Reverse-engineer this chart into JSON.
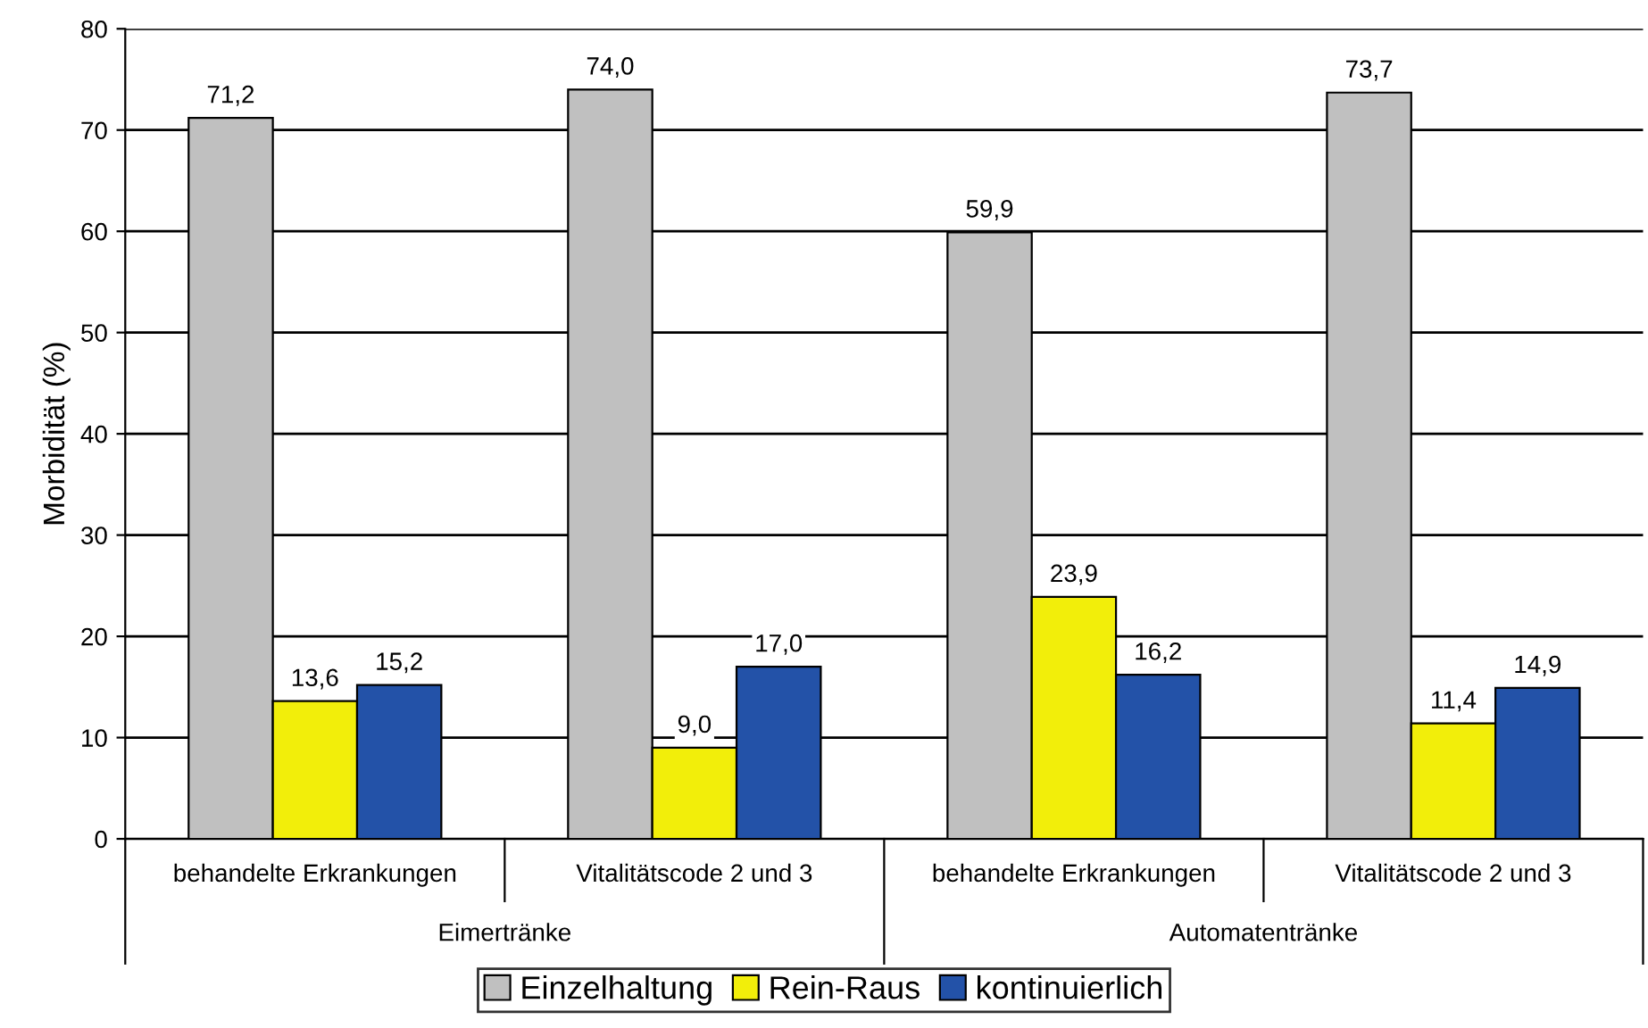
{
  "chart_data": {
    "type": "bar",
    "ylabel": "Morbidität (%)",
    "categories": [
      "behandelte Erkrankungen",
      "Vitalitätscode 2 und 3",
      "behandelte Erkrankungen",
      "Vitalitätscode 2 und 3"
    ],
    "annotations": [
      "Eimertränke",
      "Automatentränke"
    ],
    "series": [
      {
        "name": "Einzelhaltung",
        "color": "#c0c0c0",
        "values": [
          71.2,
          74.0,
          59.9,
          73.7
        ],
        "value_labels": [
          "71,2",
          "74,0",
          "59,9",
          "73,7"
        ]
      },
      {
        "name": "Rein-Raus",
        "color": "#f2ee0a",
        "values": [
          13.6,
          9.0,
          23.9,
          11.4
        ],
        "value_labels": [
          "13,6",
          "9,0",
          "23,9",
          "11,4"
        ]
      },
      {
        "name": "kontinuierlich",
        "color": "#2352a8",
        "values": [
          15.2,
          17.0,
          16.2,
          14.9
        ],
        "value_labels": [
          "15,2",
          "17,0",
          "16,2",
          "14,9"
        ]
      }
    ],
    "ylim": [
      0,
      80
    ],
    "yticks": [
      0,
      10,
      20,
      30,
      40,
      50,
      60,
      70,
      80
    ],
    "grid": "y",
    "legend": "bottom"
  }
}
